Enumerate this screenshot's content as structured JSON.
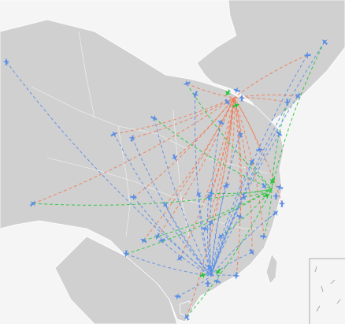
{
  "map": {
    "colors": {
      "land": "#d0d0d0",
      "land_border": "#ffffff",
      "sea": "#f5f5f5",
      "route_beijing": "#f07c56",
      "route_shanghai": "#27c43a",
      "route_guangzhou": "#5a8ee6",
      "plane": "#5a8ee6"
    },
    "legend": []
  }
}
